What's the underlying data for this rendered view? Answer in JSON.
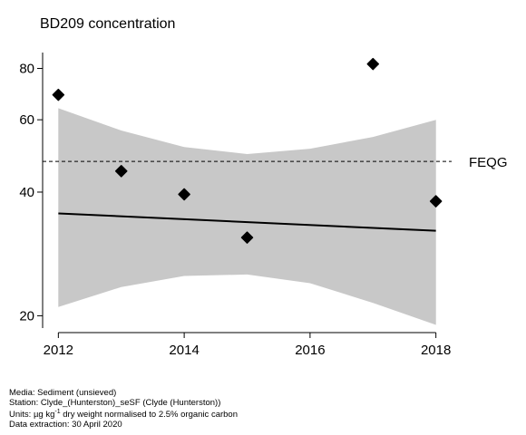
{
  "chart_data": {
    "type": "scatter",
    "title": "BD209 concentration",
    "xlabel": "",
    "ylabel": "",
    "y_scale": "log",
    "xlim": [
      2011.75,
      2018.25
    ],
    "ylim": [
      18.2,
      92
    ],
    "xticks": [
      2012,
      2014,
      2016,
      2018
    ],
    "yticks": [
      20,
      40,
      60,
      80
    ],
    "points": {
      "x": [
        2012,
        2013,
        2014,
        2015,
        2017,
        2018
      ],
      "y": [
        69,
        45,
        39.5,
        31,
        82,
        38
      ]
    },
    "trend": {
      "x": [
        2012,
        2018
      ],
      "y": [
        35.5,
        32.2
      ]
    },
    "confidence_band": {
      "x": [
        2012,
        2013,
        2014,
        2015,
        2016,
        2017,
        2018
      ],
      "upper": [
        64,
        56.5,
        51.5,
        49.5,
        51,
        54.5,
        60
      ],
      "lower": [
        21,
        23.5,
        25,
        25.2,
        24,
        21.5,
        19
      ]
    },
    "reference_line": {
      "label": "FEQG",
      "y": 47.5,
      "style": "dashed"
    },
    "grid": false,
    "legend": "none"
  },
  "colors": {
    "band": "#c8c8c8",
    "points": "#000000",
    "trend": "#000000",
    "axis": "#000000"
  },
  "footer": {
    "media": "Media: Sediment (unsieved)",
    "station": "Station: Clyde_(Hunterston)_seSF (Clyde (Hunterston))",
    "units_pre": "Units: ",
    "units_mu": "µg kg",
    "units_sup": "-1",
    "units_post": " dry weight normalised to 2.5% organic carbon",
    "extraction": "Data extraction: 30 April 2020"
  }
}
